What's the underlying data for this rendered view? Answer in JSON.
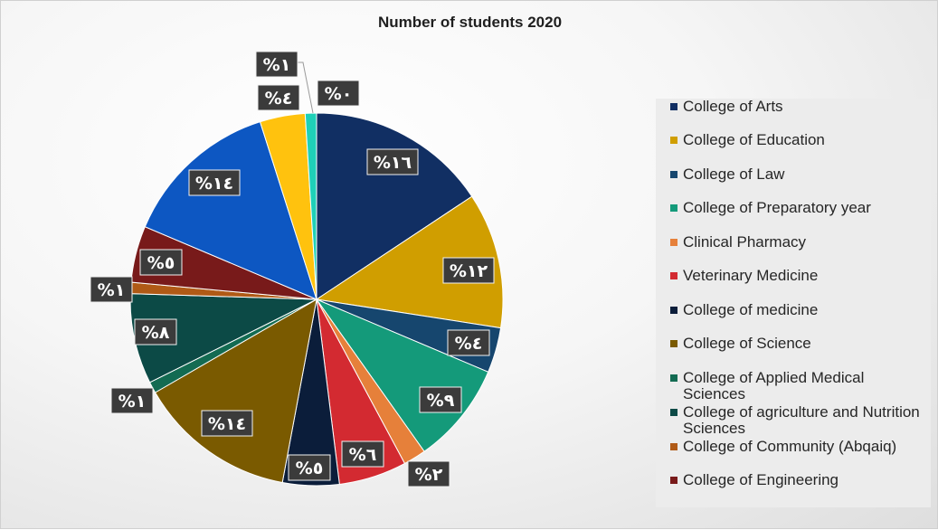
{
  "chart_data": {
    "type": "pie",
    "title": "Number of students 2020",
    "categories": [
      "College of Arts",
      "College of Education",
      "College of Law",
      "College of Preparatory year",
      "Clinical Pharmacy",
      "Veterinary Medicine",
      "College of medicine",
      "College of Science",
      "College of Applied Medical Sciences",
      "College of agriculture and Nutrition Sciences",
      "College of Community (Abqaiq)",
      "College of Engineering",
      "",
      "",
      ""
    ],
    "values": [
      16,
      12,
      4,
      9,
      2,
      6,
      5,
      14,
      1,
      8,
      1,
      5,
      14,
      4,
      1
    ],
    "data_labels": [
      "%١٦",
      "%١٢",
      "%٤",
      "%٩",
      "%٢",
      "%٦",
      "%٥",
      "%١٤",
      "%١",
      "%٨",
      "%١",
      "%٥",
      "%١٤",
      "%٤",
      "%١"
    ],
    "extra_label": "%٠",
    "colors": [
      "#112f63",
      "#d09e00",
      "#16466e",
      "#149a7a",
      "#e6803a",
      "#d32a31",
      "#0b1d3a",
      "#7a5a00",
      "#136b52",
      "#0c4a46",
      "#b05a16",
      "#781a1a",
      "#0d57c2",
      "#ffc20e",
      "#1fd0b8"
    ],
    "legend_position": "right"
  }
}
